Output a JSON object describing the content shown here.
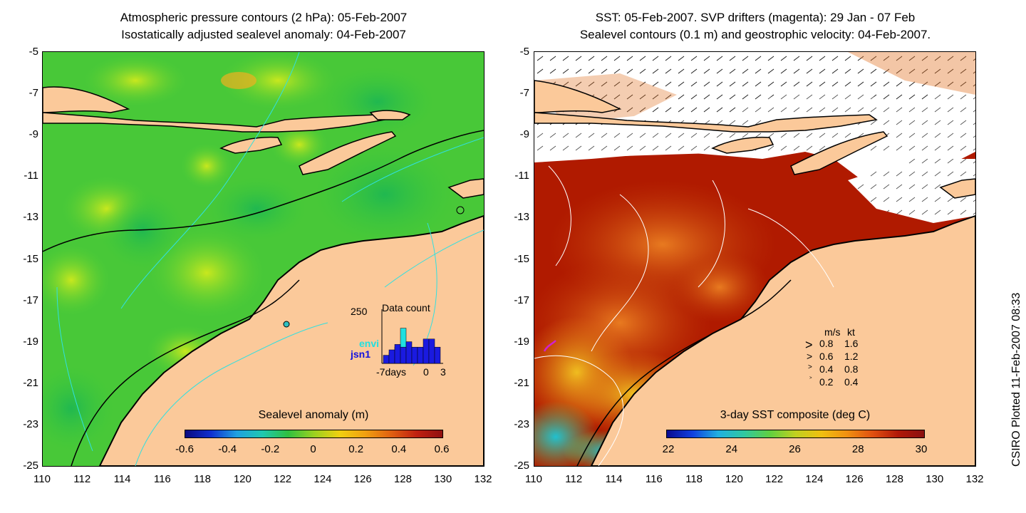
{
  "left_panel": {
    "title_line1": "Atmospheric pressure contours (2 hPa): 05-Feb-2007",
    "title_line2": "Isostatically adjusted sealevel anomaly: 04-Feb-2007",
    "colorbar": {
      "title": "Sealevel anomaly (m)",
      "ticks": [
        "-0.6",
        "-0.4",
        "-0.2",
        "0",
        "0.2",
        "0.4",
        "0.6"
      ]
    },
    "inset": {
      "title": "Data count",
      "max_label": "250",
      "series": [
        "envi",
        "jsn1"
      ],
      "x_labels": [
        "-7days",
        "0",
        "3"
      ],
      "bars_jsn1": [
        0.15,
        0.25,
        0.35,
        0.3,
        0.4,
        0.3,
        0.3,
        0.45,
        0.45,
        0.3
      ],
      "bars_envi": [
        0.0,
        0.2,
        0.3,
        0.65,
        0.3,
        0.1,
        0.0,
        0.0,
        0.0,
        0.0
      ]
    }
  },
  "right_panel": {
    "title_line1": "SST: 05-Feb-2007. SVP drifters (magenta): 29 Jan - 07 Feb",
    "title_line2": "Sealevel contours (0.1 m) and geostrophic velocity: 04-Feb-2007.",
    "colorbar": {
      "title": "3-day SST composite (deg C)",
      "ticks": [
        "22",
        "24",
        "26",
        "28",
        "30"
      ]
    },
    "velocity_legend": {
      "header_ms": "m/s",
      "header_kt": "kt",
      "rows": [
        {
          "ms": "0.8",
          "kt": "1.6"
        },
        {
          "ms": "0.6",
          "kt": "1.2"
        },
        {
          "ms": "0.4",
          "kt": "0.8"
        },
        {
          "ms": "0.2",
          "kt": "0.4"
        }
      ]
    }
  },
  "axes": {
    "y_ticks": [
      "-5",
      "-7",
      "-9",
      "-11",
      "-13",
      "-15",
      "-17",
      "-19",
      "-21",
      "-23",
      "-25"
    ],
    "x_ticks": [
      "110",
      "112",
      "114",
      "116",
      "118",
      "120",
      "122",
      "124",
      "126",
      "128",
      "130",
      "132"
    ]
  },
  "credit": "CSIRO Plotted 11-Feb-2007 08:33",
  "colors": {
    "land": "#fbc99a",
    "ocean_green": "#3cc83a",
    "sst_red": "#b01a00",
    "sst_orange": "#e86a10"
  }
}
